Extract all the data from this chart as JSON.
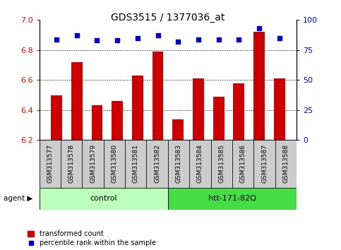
{
  "title": "GDS3515 / 1377036_at",
  "categories": [
    "GSM313577",
    "GSM313578",
    "GSM313579",
    "GSM313580",
    "GSM313581",
    "GSM313582",
    "GSM313583",
    "GSM313584",
    "GSM313585",
    "GSM313586",
    "GSM313587",
    "GSM313588"
  ],
  "bar_values": [
    6.5,
    6.72,
    6.43,
    6.46,
    6.63,
    6.79,
    6.34,
    6.61,
    6.49,
    6.58,
    6.92,
    6.61
  ],
  "dot_values": [
    84,
    87,
    83,
    83,
    85,
    87,
    82,
    84,
    84,
    84,
    93,
    85
  ],
  "bar_color": "#cc0000",
  "dot_color": "#0000cc",
  "ylim_left": [
    6.2,
    7.0
  ],
  "ylim_right": [
    0,
    100
  ],
  "yticks_left": [
    6.2,
    6.4,
    6.6,
    6.8,
    7.0
  ],
  "yticks_right": [
    0,
    25,
    50,
    75,
    100
  ],
  "grid_values": [
    6.4,
    6.6,
    6.8
  ],
  "group_labels": [
    "control",
    "htt-171-82Q"
  ],
  "group_colors": [
    "#bbffbb",
    "#44dd44"
  ],
  "agent_label": "agent",
  "legend_bar_label": "transformed count",
  "legend_dot_label": "percentile rank within the sample",
  "bar_width": 0.55,
  "xlabel_bg": "#cccccc",
  "fig_bg": "#ffffff"
}
